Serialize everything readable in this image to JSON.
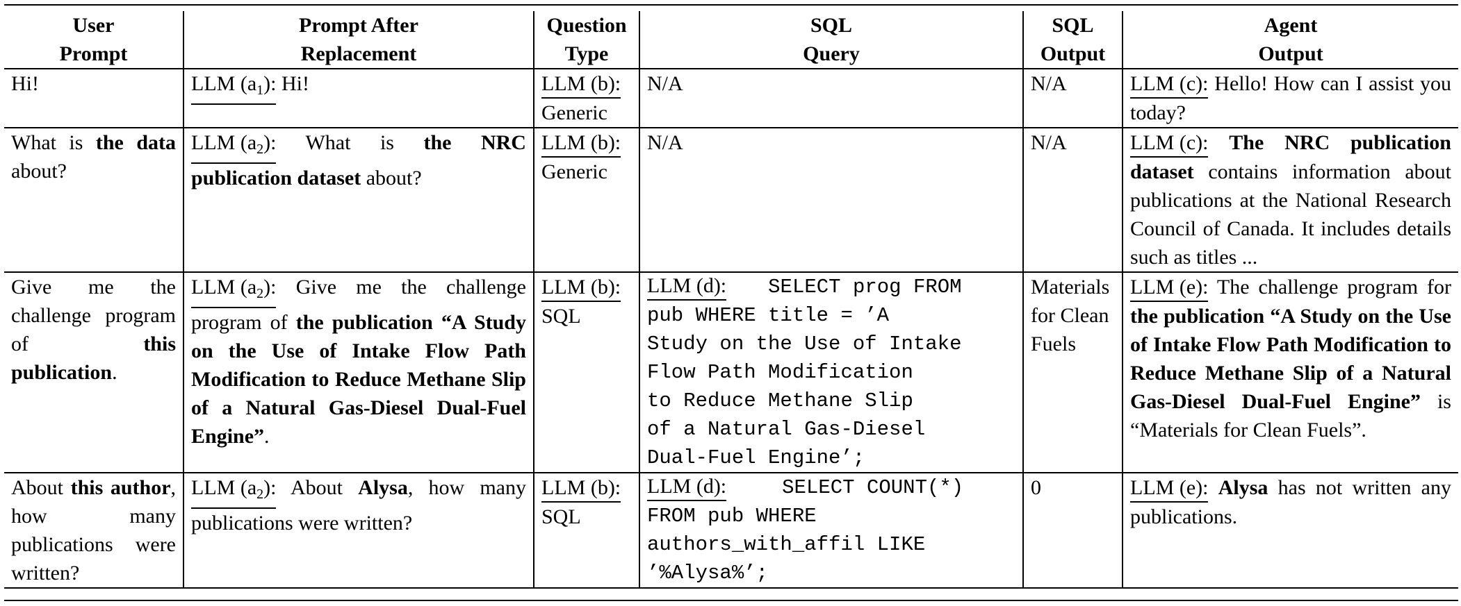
{
  "headers": {
    "user_prompt": [
      "User",
      "Prompt"
    ],
    "prompt_after": [
      "Prompt After",
      "Replacement"
    ],
    "question_type": [
      "Question",
      "Type"
    ],
    "sql_query": [
      "SQL",
      "Query"
    ],
    "sql_output": [
      "SQL",
      "Output"
    ],
    "agent_output": [
      "Agent",
      "Output"
    ]
  },
  "rows": [
    {
      "user": [
        "Hi!"
      ],
      "replacement_label": "LLM (a",
      "replacement_sub": "1",
      "replacement_text": "Hi!",
      "qtype_label": "LLM (b):",
      "qtype": "Generic",
      "sql": "N/A",
      "sql_output": "N/A",
      "agent_label": "LLM (c):",
      "agent_text": "Hello! How can I assist you today?"
    },
    {
      "user_plain": "What is ",
      "user_bold": "the data",
      "user_tail": " about?",
      "replacement_label": "LLM (a",
      "replacement_sub": "2",
      "replacement_pre": "What is ",
      "replacement_bold": "the NRC publication dataset",
      "replacement_post": " about?",
      "qtype_label": "LLM (b):",
      "qtype": "Generic",
      "sql": "N/A",
      "sql_output": "N/A",
      "agent_label": "LLM (c):",
      "agent_bold": "The NRC publication dataset",
      "agent_post": " contains information about publications at the National Research Council of Canada. It includes details such as titles ..."
    },
    {
      "user_plain": "Give me the challenge program of ",
      "user_bold": "this publication",
      "user_tail": ".",
      "replacement_label": "LLM (a",
      "replacement_sub": "2",
      "replacement_pre": "Give me the challenge program of ",
      "replacement_bold": "the publication “A Study on the Use of Intake Flow Path Modification to Reduce Methane Slip of a Natural Gas-Diesel Dual-Fuel Engine”",
      "replacement_post": ".",
      "qtype_label": "LLM (b):",
      "qtype": "SQL",
      "sql_label": "LLM (d):",
      "sql_lines": [
        "SELECT prog FROM",
        "pub WHERE title = ’A",
        "Study on the Use of Intake",
        "Flow Path Modification",
        "to Reduce Methane Slip",
        "of a Natural Gas-Diesel",
        "Dual-Fuel Engine’;"
      ],
      "sql_output": "Materials for Clean Fuels",
      "agent_label": "LLM (e):",
      "agent_pre": " The challenge program for ",
      "agent_bold": "the publication “A Study on the Use of Intake Flow Path Modification to Reduce Methane Slip of a Natural Gas-Diesel Dual-Fuel Engine”",
      "agent_post": " is “Materials for Clean Fuels”."
    },
    {
      "user_plain": "About ",
      "user_bold": "this author",
      "user_tail": ", how many publications were written?",
      "replacement_label": "LLM (a",
      "replacement_sub": "2",
      "replacement_pre": " About ",
      "replacement_bold": "Alysa",
      "replacement_post": ", how many publications were written?",
      "qtype_label": "LLM (b):",
      "qtype": "SQL",
      "sql_label": "LLM (d):",
      "sql_lines": [
        "SELECT COUNT(*)",
        "FROM pub WHERE",
        "authors_with_affil LIKE",
        "’%Alysa%’;"
      ],
      "sql_output": "0",
      "agent_label": "LLM (e):",
      "agent_bold": "Alysa",
      "agent_post": " has not written any publications."
    }
  ]
}
